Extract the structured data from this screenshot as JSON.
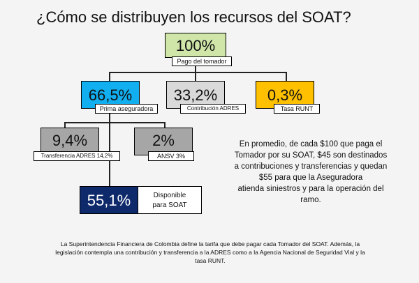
{
  "title": "¿Cómo se distribuyen los recursos del SOAT?",
  "colors": {
    "green": "#cfe6a8",
    "blue": "#11aef0",
    "light_gray": "#d9d9d9",
    "yellow": "#ffc000",
    "dark_gray": "#a6a6a6",
    "navy": "#0e2a6b"
  },
  "nodes": {
    "total": {
      "value": "100%",
      "label": "Pago del tomador"
    },
    "prima": {
      "value": "66,5%",
      "label": "Prima aseguradora"
    },
    "contribucion": {
      "value": "33,2%",
      "label": "Contribución  ADRES"
    },
    "tasa": {
      "value": "0,3%",
      "label": "Tasa RUNT"
    },
    "transferencia": {
      "value": "9,4%",
      "label": "Transferencia  ADRES 14,2%"
    },
    "ansv": {
      "value": "2%",
      "label": "ANSV 3%"
    },
    "disponible": {
      "value": "55,1%",
      "label_line1": "Disponible",
      "label_line2": "para SOAT"
    }
  },
  "summary": {
    "lines": [
      "En promedio, de cada $100  que paga el",
      "Tomador por su SOAT, $45 son destinados",
      "a contribuciones y transferencias y quedan",
      "$55  para que la Aseguradora",
      "atienda siniestros y para la operación del",
      "ramo."
    ]
  },
  "footer": {
    "lines": [
      "La Superintendencia Financiera de Colombia define la tarifa que debe pagar cada Tomador del SOAT. Además, la",
      "legislación contempla una contribución y transferencia  a la ADRES como a la Agencia Nacional de Seguridad Vial y la",
      "tasa RUNT."
    ]
  }
}
